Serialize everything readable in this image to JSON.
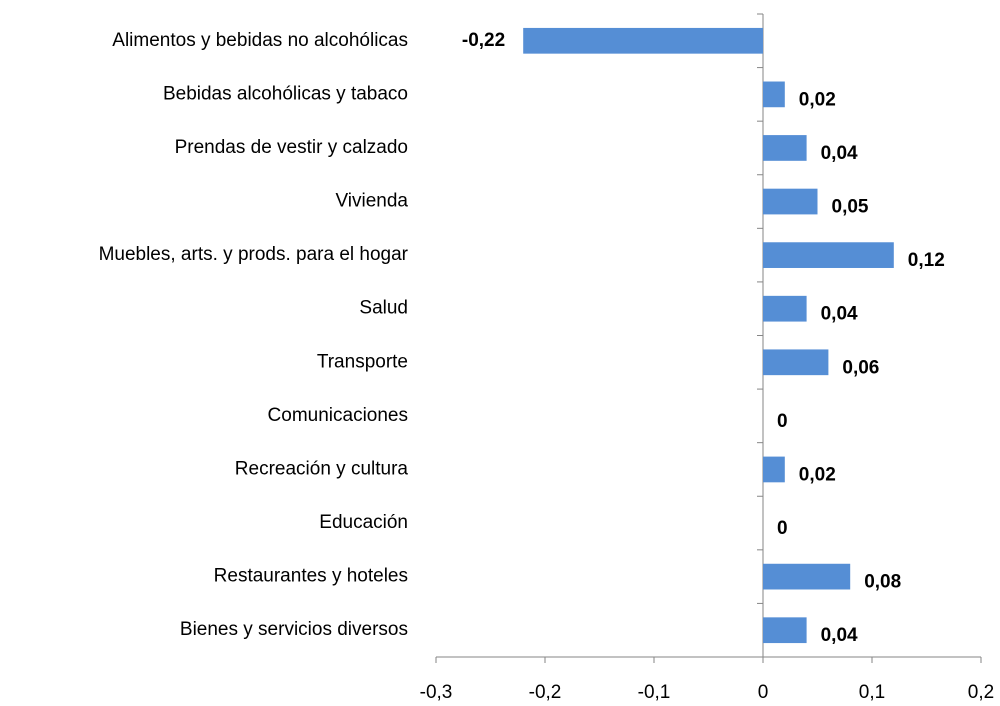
{
  "chart_data": {
    "type": "bar",
    "orientation": "horizontal",
    "categories": [
      "Alimentos y bebidas no alcohólicas",
      "Bebidas alcohólicas y tabaco",
      "Prendas de vestir y calzado",
      "Vivienda",
      "Muebles, arts. y prods. para el hogar",
      "Salud",
      "Transporte",
      "Comunicaciones",
      "Recreación y cultura",
      "Educación",
      "Restaurantes y hoteles",
      "Bienes y servicios diversos"
    ],
    "values": [
      -0.22,
      0.02,
      0.04,
      0.05,
      0.12,
      0.04,
      0.06,
      0,
      0.02,
      0,
      0.08,
      0.04
    ],
    "value_labels": [
      "-0,22",
      "0,02",
      "0,04",
      "0,05",
      "0,12",
      "0,04",
      "0,06",
      "0",
      "0,02",
      "0",
      "0,08",
      "0,04"
    ],
    "color": "#558ed5",
    "xlim": [
      -0.3,
      0.2
    ],
    "xticks": [
      {
        "value": -0.3,
        "label": "-0,3"
      },
      {
        "value": -0.2,
        "label": "-0,2"
      },
      {
        "value": -0.1,
        "label": "-0,1"
      },
      0,
      {
        "value": 0.1,
        "label": "0,1"
      },
      {
        "value": 0.2,
        "label": "0,2"
      }
    ]
  }
}
